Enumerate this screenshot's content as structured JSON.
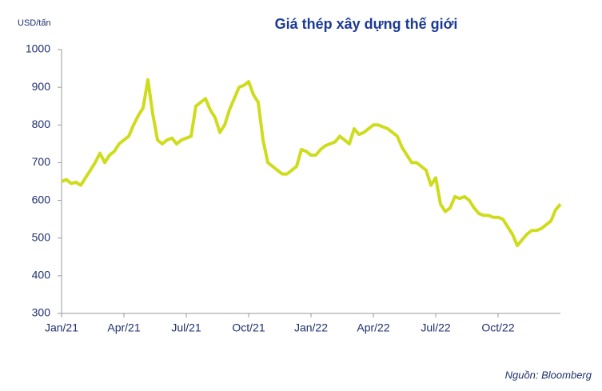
{
  "chart_data": {
    "type": "line",
    "title": "Giá thép xây dựng thế giới",
    "y_label": "USD/tấn",
    "source": "Nguồn: Bloomberg",
    "categories": [
      "Jan/21",
      null,
      null,
      null,
      null,
      null,
      null,
      null,
      null,
      null,
      null,
      null,
      null,
      "Apr/21",
      null,
      null,
      null,
      null,
      null,
      null,
      null,
      null,
      null,
      null,
      null,
      null,
      "Jul/21",
      null,
      null,
      null,
      null,
      null,
      null,
      null,
      null,
      null,
      null,
      null,
      null,
      "Oct/21",
      null,
      null,
      null,
      null,
      null,
      null,
      null,
      null,
      null,
      null,
      null,
      null,
      "Jan/22",
      null,
      null,
      null,
      null,
      null,
      null,
      null,
      null,
      null,
      null,
      null,
      null,
      "Apr/22",
      null,
      null,
      null,
      null,
      null,
      null,
      null,
      null,
      null,
      null,
      null,
      null,
      "Jul/22",
      null,
      null,
      null,
      null,
      null,
      null,
      null,
      null,
      null,
      null,
      null,
      null,
      "Oct/22",
      null,
      null,
      null,
      null,
      null,
      null,
      null,
      null,
      null,
      null,
      null,
      null,
      null
    ],
    "series": [
      {
        "name": "Giá thép",
        "color": "#cfdc1e",
        "values": [
          650,
          655,
          645,
          648,
          640,
          660,
          680,
          700,
          725,
          700,
          720,
          730,
          750,
          760,
          770,
          800,
          825,
          845,
          920,
          830,
          760,
          750,
          760,
          765,
          750,
          760,
          765,
          770,
          850,
          860,
          870,
          840,
          820,
          780,
          800,
          840,
          870,
          900,
          905,
          915,
          880,
          860,
          760,
          700,
          690,
          680,
          670,
          670,
          680,
          690,
          735,
          730,
          720,
          720,
          735,
          745,
          750,
          755,
          770,
          760,
          750,
          790,
          775,
          780,
          790,
          800,
          800,
          795,
          790,
          780,
          770,
          740,
          720,
          700,
          700,
          690,
          680,
          640,
          660,
          590,
          570,
          580,
          610,
          605,
          610,
          600,
          580,
          565,
          560,
          560,
          555,
          555,
          550,
          530,
          510,
          480,
          495,
          510,
          520,
          520,
          525,
          535,
          545,
          575,
          590
        ]
      }
    ],
    "ylim": [
      300,
      1000
    ],
    "yticks": [
      300,
      400,
      500,
      600,
      700,
      800,
      900,
      1000
    ]
  }
}
